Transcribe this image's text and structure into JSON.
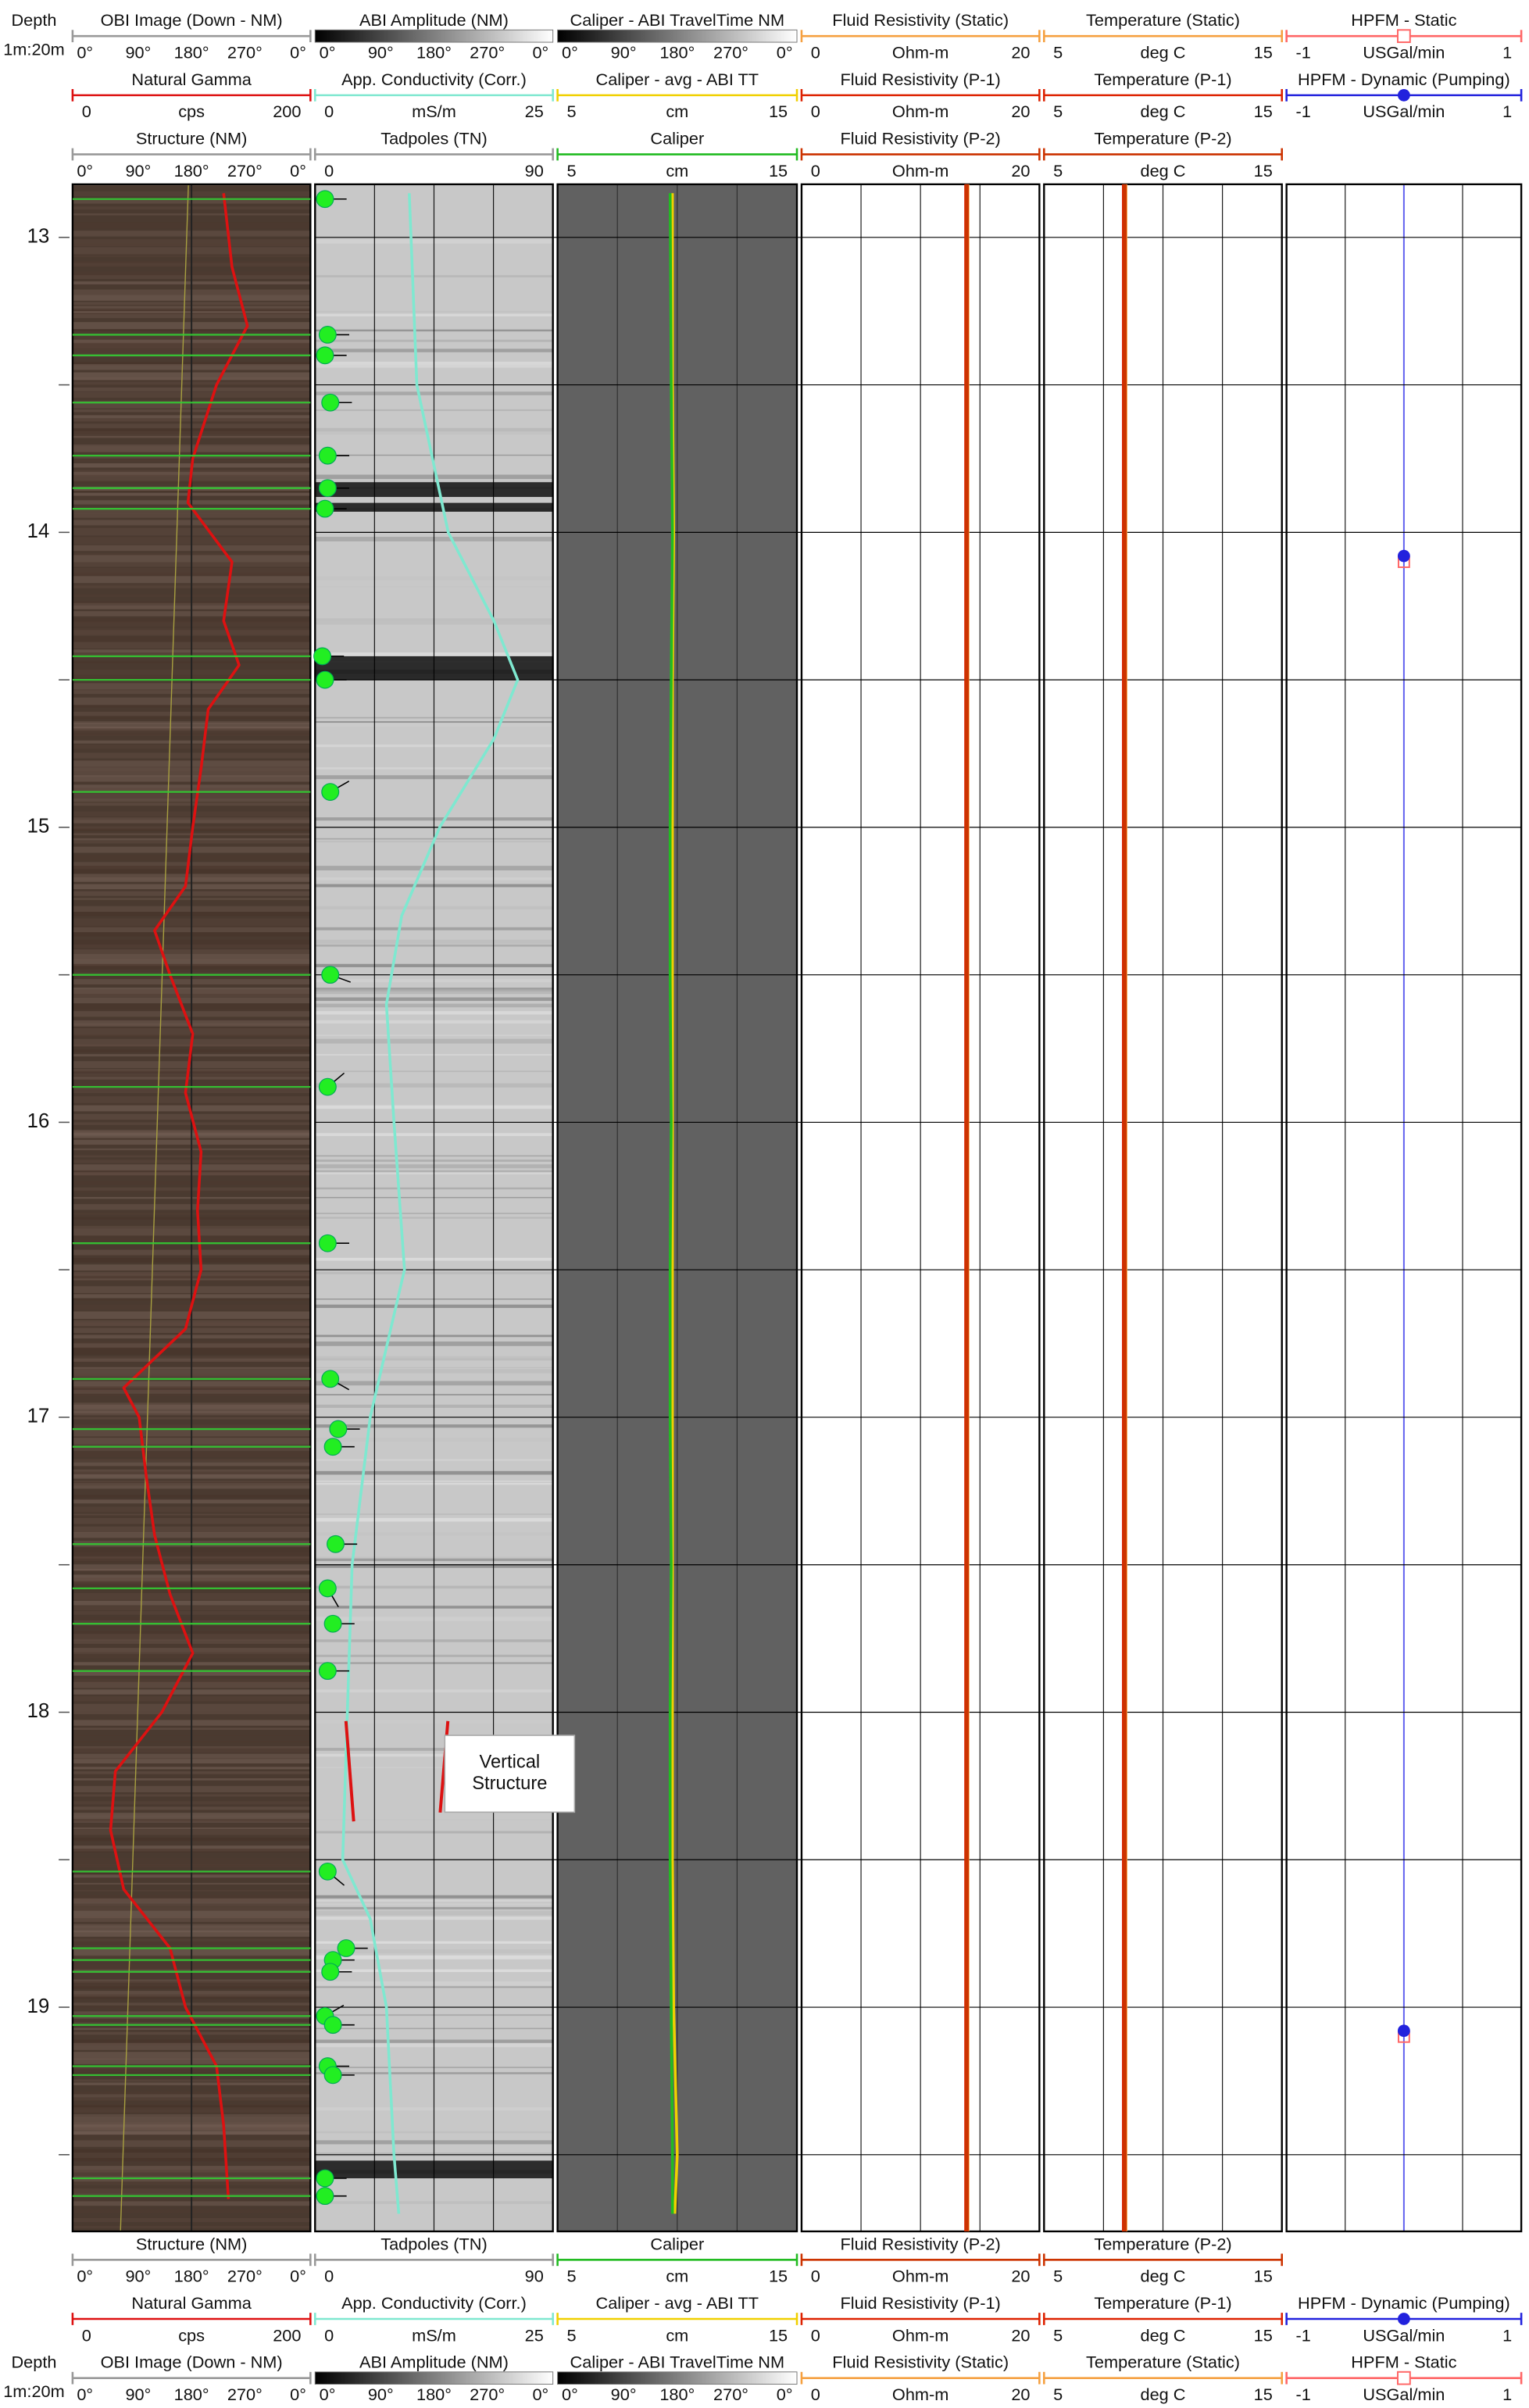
{
  "depth_title": "Depth",
  "scale": "1m:20m",
  "ylim": [
    12.82,
    19.76
  ],
  "depth_ticks": [
    13,
    14,
    15,
    16,
    17,
    18,
    19
  ],
  "grid_depths": [
    13,
    13.5,
    14,
    14.5,
    15,
    15.5,
    16,
    16.5,
    17,
    17.5,
    18,
    18.5,
    19,
    19.5
  ],
  "annotation": [
    "Vertical",
    "Structure"
  ],
  "tracks": [
    {
      "background": "#4a3a30",
      "headers": [
        {
          "title": "OBI Image (Down - NM)",
          "color": "#999999",
          "labels": [
            "0°",
            "90°",
            "180°",
            "270°",
            "0°"
          ]
        },
        {
          "title": "Natural Gamma",
          "color": "#dd1111",
          "scale": [
            0,
            200
          ],
          "unit": "cps",
          "depths": [
            12.85,
            13.1,
            13.3,
            13.5,
            13.75,
            13.9,
            14.1,
            14.3,
            14.45,
            14.6,
            14.8,
            15.0,
            15.2,
            15.35,
            15.5,
            15.7,
            15.9,
            16.1,
            16.3,
            16.5,
            16.7,
            16.9,
            17.0,
            17.2,
            17.4,
            17.6,
            17.8,
            18.0,
            18.2,
            18.4,
            18.6,
            18.8,
            19.0,
            19.2,
            19.4,
            19.65
          ],
          "values": [
            127,
            134,
            147,
            121,
            101,
            97,
            134,
            127,
            140,
            114,
            108,
            101,
            95,
            69,
            82,
            101,
            95,
            108,
            105,
            108,
            95,
            43,
            56,
            62,
            69,
            82,
            101,
            75,
            36,
            32,
            43,
            82,
            95,
            121,
            127,
            131
          ]
        },
        {
          "title": "Structure (NM)",
          "color": "#999999",
          "line_color": "#33cc33",
          "labels": [
            "0°",
            "90°",
            "180°",
            "270°",
            "0°"
          ],
          "structure_depths": [
            12.87,
            13.33,
            13.4,
            13.56,
            13.74,
            13.85,
            13.92,
            14.42,
            14.5,
            14.88,
            15.5,
            15.88,
            16.41,
            16.87,
            17.04,
            17.1,
            17.43,
            17.58,
            17.7,
            17.86,
            18.54,
            18.8,
            18.84,
            18.88,
            19.03,
            19.06,
            19.2,
            19.23,
            19.58,
            19.64
          ]
        }
      ]
    },
    {
      "background": "#c8c8c8",
      "headers": [
        {
          "title": "ABI Amplitude (NM)",
          "gradient": true,
          "labels": [
            "0°",
            "90°",
            "180°",
            "270°",
            "0°"
          ]
        },
        {
          "title": "App. Conductivity (Corr.)",
          "color": "#7fe8d0",
          "scale": [
            0,
            25
          ],
          "unit": "mS/m",
          "depths": [
            12.85,
            13.5,
            14.0,
            14.3,
            14.5,
            14.7,
            15.0,
            15.3,
            15.6,
            16.0,
            16.5,
            17.0,
            17.5,
            18.0,
            18.5,
            18.7,
            19.0,
            19.5,
            19.7
          ],
          "values": [
            9.9,
            10.7,
            14,
            18.8,
            21.3,
            18.8,
            13.1,
            9.1,
            7.5,
            8.3,
            9.4,
            5.8,
            3.9,
            3.4,
            2.9,
            5.8,
            7.5,
            8.3,
            8.8
          ]
        },
        {
          "title": "Tadpoles (TN)",
          "color": "#999999",
          "scale": [
            0,
            90
          ],
          "tadpole_color": "#22ee22",
          "tadpole_depths": [
            12.87,
            13.33,
            13.4,
            13.56,
            13.74,
            13.85,
            13.92,
            14.42,
            14.5,
            14.88,
            15.5,
            15.88,
            16.41,
            16.87,
            17.04,
            17.1,
            17.43,
            17.58,
            17.7,
            17.86,
            18.54,
            18.8,
            18.84,
            18.88,
            19.03,
            19.06,
            19.2,
            19.23,
            19.58,
            19.64
          ],
          "dips": [
            2,
            3,
            2,
            4,
            3,
            3,
            2,
            1,
            2,
            4,
            4,
            3,
            3,
            4,
            7,
            5,
            6,
            3,
            5,
            3,
            3,
            10,
            5,
            4,
            2,
            5,
            3,
            5,
            2,
            2
          ],
          "azimuths": [
            90,
            90,
            90,
            90,
            90,
            90,
            90,
            90,
            90,
            60,
            110,
            50,
            90,
            120,
            90,
            90,
            90,
            150,
            90,
            90,
            130,
            90,
            90,
            90,
            60,
            90,
            90,
            90,
            90,
            90
          ]
        }
      ]
    },
    {
      "background": "#616161",
      "headers": [
        {
          "title": "Caliper - ABI TravelTime NM",
          "gradient": true,
          "labels": [
            "0°",
            "90°",
            "180°",
            "270°",
            "0°"
          ]
        },
        {
          "title": "Caliper - avg - ABI TT",
          "color": "#f0d000",
          "scale": [
            5,
            15
          ],
          "unit": "cm",
          "depths": [
            12.85,
            13.5,
            14.0,
            14.5,
            15.0,
            15.5,
            16.0,
            16.5,
            17.0,
            17.5,
            18.0,
            18.5,
            19.0,
            19.5,
            19.7
          ],
          "values": [
            9.8,
            9.8,
            9.85,
            9.8,
            9.8,
            9.8,
            9.8,
            9.8,
            9.8,
            9.8,
            9.8,
            9.8,
            9.85,
            10.0,
            9.9
          ]
        },
        {
          "title": "Caliper",
          "color": "#22bb22",
          "scale": [
            5,
            15
          ],
          "unit": "cm",
          "depths": [
            12.85,
            13.5,
            14.0,
            14.5,
            15.0,
            15.5,
            16.0,
            16.5,
            17.0,
            17.5,
            18.0,
            18.5,
            19.0,
            19.5,
            19.7
          ],
          "values": [
            9.7,
            9.75,
            9.8,
            9.75,
            9.7,
            9.7,
            9.75,
            9.7,
            9.7,
            9.75,
            9.7,
            9.7,
            9.75,
            9.8,
            9.8
          ]
        }
      ]
    },
    {
      "background": "#ffffff",
      "headers": [
        {
          "title": "Fluid Resistivity (Static)",
          "color": "#f5a040",
          "scale": [
            0,
            20
          ],
          "unit": "Ohm-m",
          "depths": [
            12.82,
            19.76
          ],
          "values": [
            13.95,
            13.95
          ]
        },
        {
          "title": "Fluid Resistivity (P-1)",
          "color": "#dd2200",
          "scale": [
            0,
            20
          ],
          "unit": "Ohm-m",
          "depths": [
            12.82,
            19.76
          ],
          "values": [
            13.85,
            13.85
          ]
        },
        {
          "title": "Fluid Resistivity (P-2)",
          "color": "#cc3300",
          "scale": [
            0,
            20
          ],
          "unit": "Ohm-m",
          "depths": [
            12.82,
            19.76
          ],
          "values": [
            13.9,
            13.9
          ]
        }
      ]
    },
    {
      "background": "#ffffff",
      "headers": [
        {
          "title": "Temperature (Static)",
          "color": "#f5a040",
          "scale": [
            5,
            15
          ],
          "unit": "deg C",
          "depths": [
            12.82,
            19.76
          ],
          "values": [
            8.42,
            8.42
          ]
        },
        {
          "title": "Temperature (P-1)",
          "color": "#dd2200",
          "scale": [
            5,
            15
          ],
          "unit": "deg C",
          "depths": [
            12.82,
            19.76
          ],
          "values": [
            8.36,
            8.36
          ]
        },
        {
          "title": "Temperature (P-2)",
          "color": "#cc3300",
          "scale": [
            5,
            15
          ],
          "unit": "deg C",
          "depths": [
            12.82,
            19.76
          ],
          "values": [
            8.39,
            8.39
          ]
        }
      ]
    },
    {
      "background": "#ffffff",
      "headers": [
        {
          "title": "HPFM - Static",
          "color": "#ff6666",
          "scale": [
            -1,
            1
          ],
          "unit": "USGal/min",
          "marker": "square",
          "point_depths": [
            14.1,
            19.1
          ],
          "points": [
            0,
            0
          ]
        },
        {
          "title": "HPFM - Dynamic (Pumping)",
          "color": "#2222dd",
          "scale": [
            -1,
            1
          ],
          "unit": "USGal/min",
          "marker": "circle",
          "point_depths": [
            14.08,
            19.08
          ],
          "points": [
            0,
            0
          ]
        }
      ]
    }
  ]
}
